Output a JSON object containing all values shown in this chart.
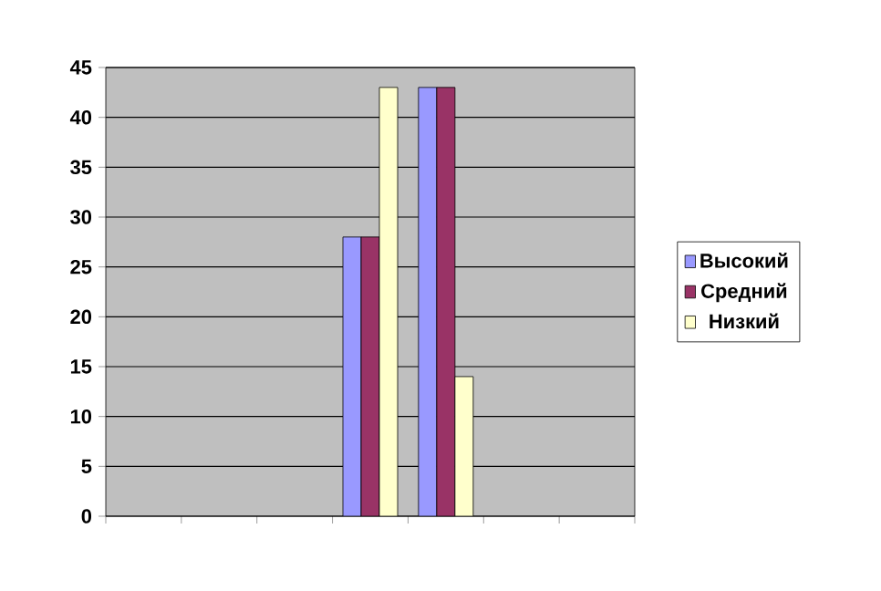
{
  "chart_data": {
    "type": "bar",
    "categories": [
      null,
      null,
      null,
      null,
      null,
      null,
      null
    ],
    "series": [
      {
        "name": "Высокий",
        "color": "#9999ff",
        "values": [
          null,
          null,
          null,
          28,
          43,
          null,
          null
        ]
      },
      {
        "name": "Средний",
        "color": "#993366",
        "values": [
          null,
          null,
          null,
          28,
          43,
          null,
          null
        ]
      },
      {
        "name": "Низкий",
        "color": "#ffffcc",
        "values": [
          null,
          null,
          null,
          43,
          14,
          null,
          null
        ]
      }
    ],
    "ylim": [
      0,
      45
    ],
    "yticks": [
      0,
      5,
      10,
      15,
      20,
      25,
      30,
      35,
      40,
      45
    ],
    "grid": "y",
    "legend": "right"
  }
}
